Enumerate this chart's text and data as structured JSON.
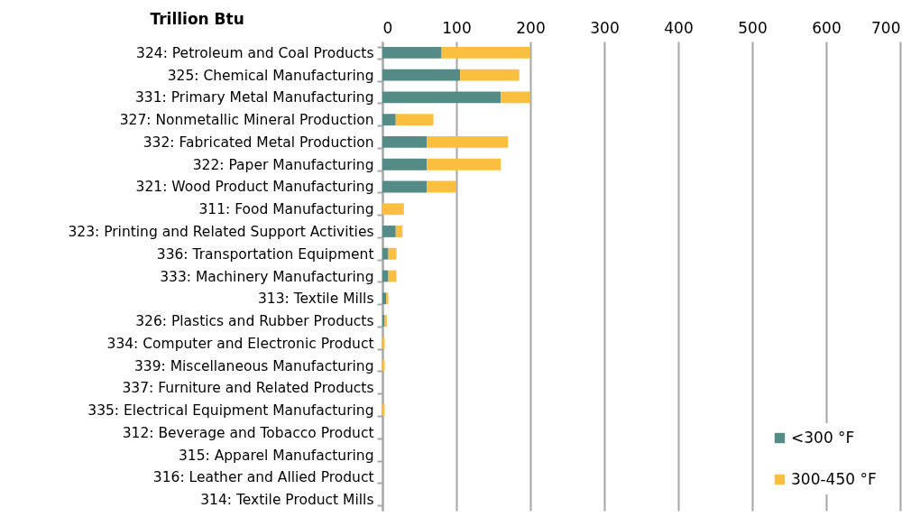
{
  "chart_data": {
    "type": "bar",
    "orientation": "horizontal",
    "stacked": true,
    "xlabel": "Trillion Btu",
    "categories": [
      "324: Petroleum and Coal Products",
      "325: Chemical Manufacturing",
      "331: Primary Metal Manufacturing",
      "327: Nonmetallic Mineral Production",
      "332: Fabricated Metal Production",
      "322: Paper Manufacturing",
      "321: Wood Product Manufacturing",
      "311: Food Manufacturing",
      "323: Printing and Related Support Activities",
      "336: Transportation Equipment",
      "333: Machinery Manufacturing",
      "313: Textile Mills",
      "326: Plastics and Rubber Products",
      "334: Computer and Electronic Product",
      "339: Miscellaneous Manufacturing",
      "337: Furniture and Related Products",
      "335: Electrical Equipment Manufacturing",
      "312: Beverage and Tobacco Product",
      "315: Apparel Manufacturing",
      "316: Leather and Allied Product",
      "314: Textile Product Mills"
    ],
    "series": [
      {
        "name": "<300 °F",
        "color": "#558b87",
        "values": [
          80,
          105,
          160,
          18,
          60,
          60,
          60,
          0,
          18,
          8,
          8,
          5,
          3,
          0,
          0,
          0,
          0,
          0,
          0,
          0,
          0
        ]
      },
      {
        "name": "300-450 °F",
        "color": "#fbbf40",
        "values": [
          120,
          80,
          40,
          51,
          110,
          100,
          40,
          29,
          9,
          11,
          11,
          3,
          3,
          3,
          3,
          0,
          3,
          0,
          0,
          0,
          0
        ]
      }
    ],
    "xlim": [
      0,
      700
    ],
    "xticks": [
      0,
      100,
      200,
      300,
      400,
      500,
      600,
      700
    ],
    "grid": "x",
    "legend": "bottom right"
  }
}
